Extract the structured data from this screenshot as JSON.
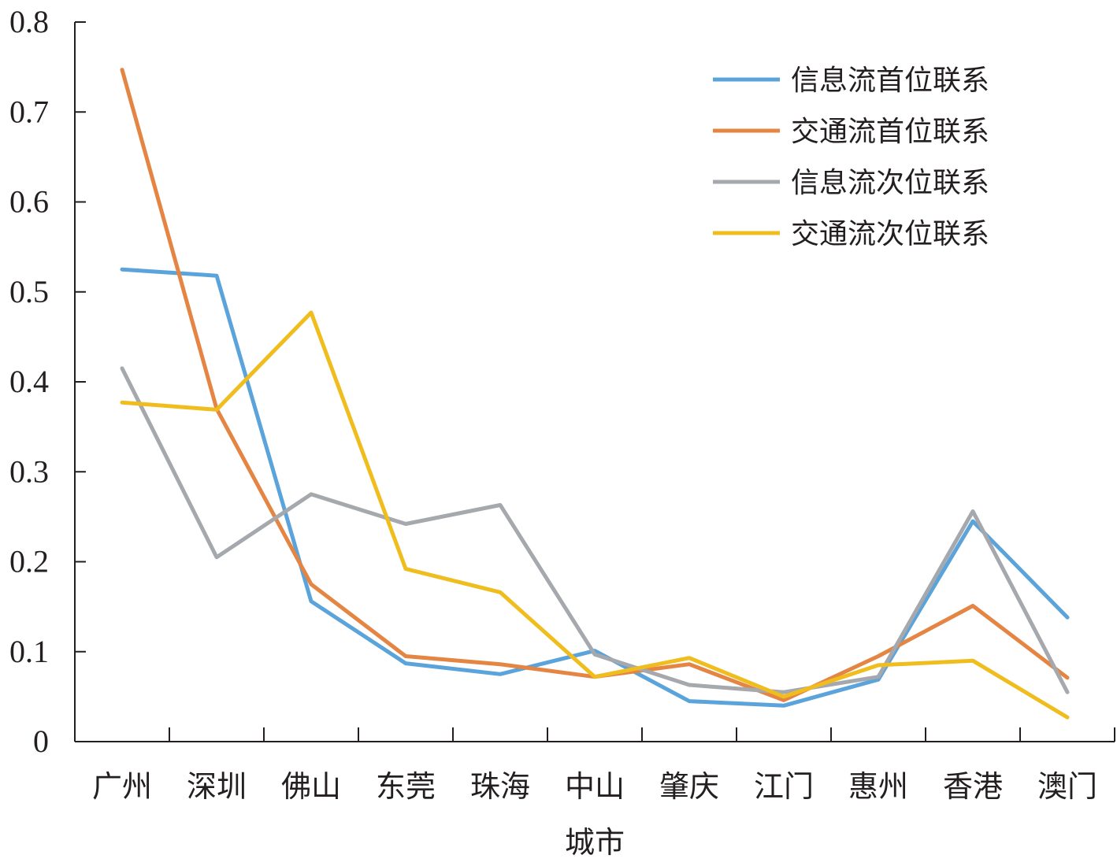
{
  "chart_data": {
    "type": "line",
    "categories": [
      "广州",
      "深圳",
      "佛山",
      "东莞",
      "珠海",
      "中山",
      "肇庆",
      "江门",
      "惠州",
      "香港",
      "澳门"
    ],
    "series": [
      {
        "name": "信息流首位联系",
        "color": "#5aa3db",
        "values": [
          0.525,
          0.518,
          0.156,
          0.087,
          0.075,
          0.101,
          0.045,
          0.04,
          0.069,
          0.245,
          0.138
        ]
      },
      {
        "name": "交通流首位联系",
        "color": "#e58543",
        "values": [
          0.747,
          0.37,
          0.175,
          0.095,
          0.086,
          0.072,
          0.086,
          0.046,
          0.095,
          0.151,
          0.071
        ]
      },
      {
        "name": "信息流次位联系",
        "color": "#a5a8ad",
        "values": [
          0.415,
          0.205,
          0.275,
          0.242,
          0.263,
          0.097,
          0.063,
          0.055,
          0.072,
          0.256,
          0.055
        ]
      },
      {
        "name": "交通流次位联系",
        "color": "#f0bd1e",
        "values": [
          0.377,
          0.369,
          0.477,
          0.192,
          0.166,
          0.072,
          0.093,
          0.05,
          0.085,
          0.09,
          0.027
        ]
      }
    ],
    "title": "",
    "xlabel": "城市",
    "ylabel": "",
    "ylim": [
      0,
      0.8
    ],
    "yticks": [
      "0",
      "0.1",
      "0.2",
      "0.3",
      "0.4",
      "0.5",
      "0.6",
      "0.7",
      "0.8"
    ],
    "grid": false,
    "legend_position": "top-right"
  }
}
